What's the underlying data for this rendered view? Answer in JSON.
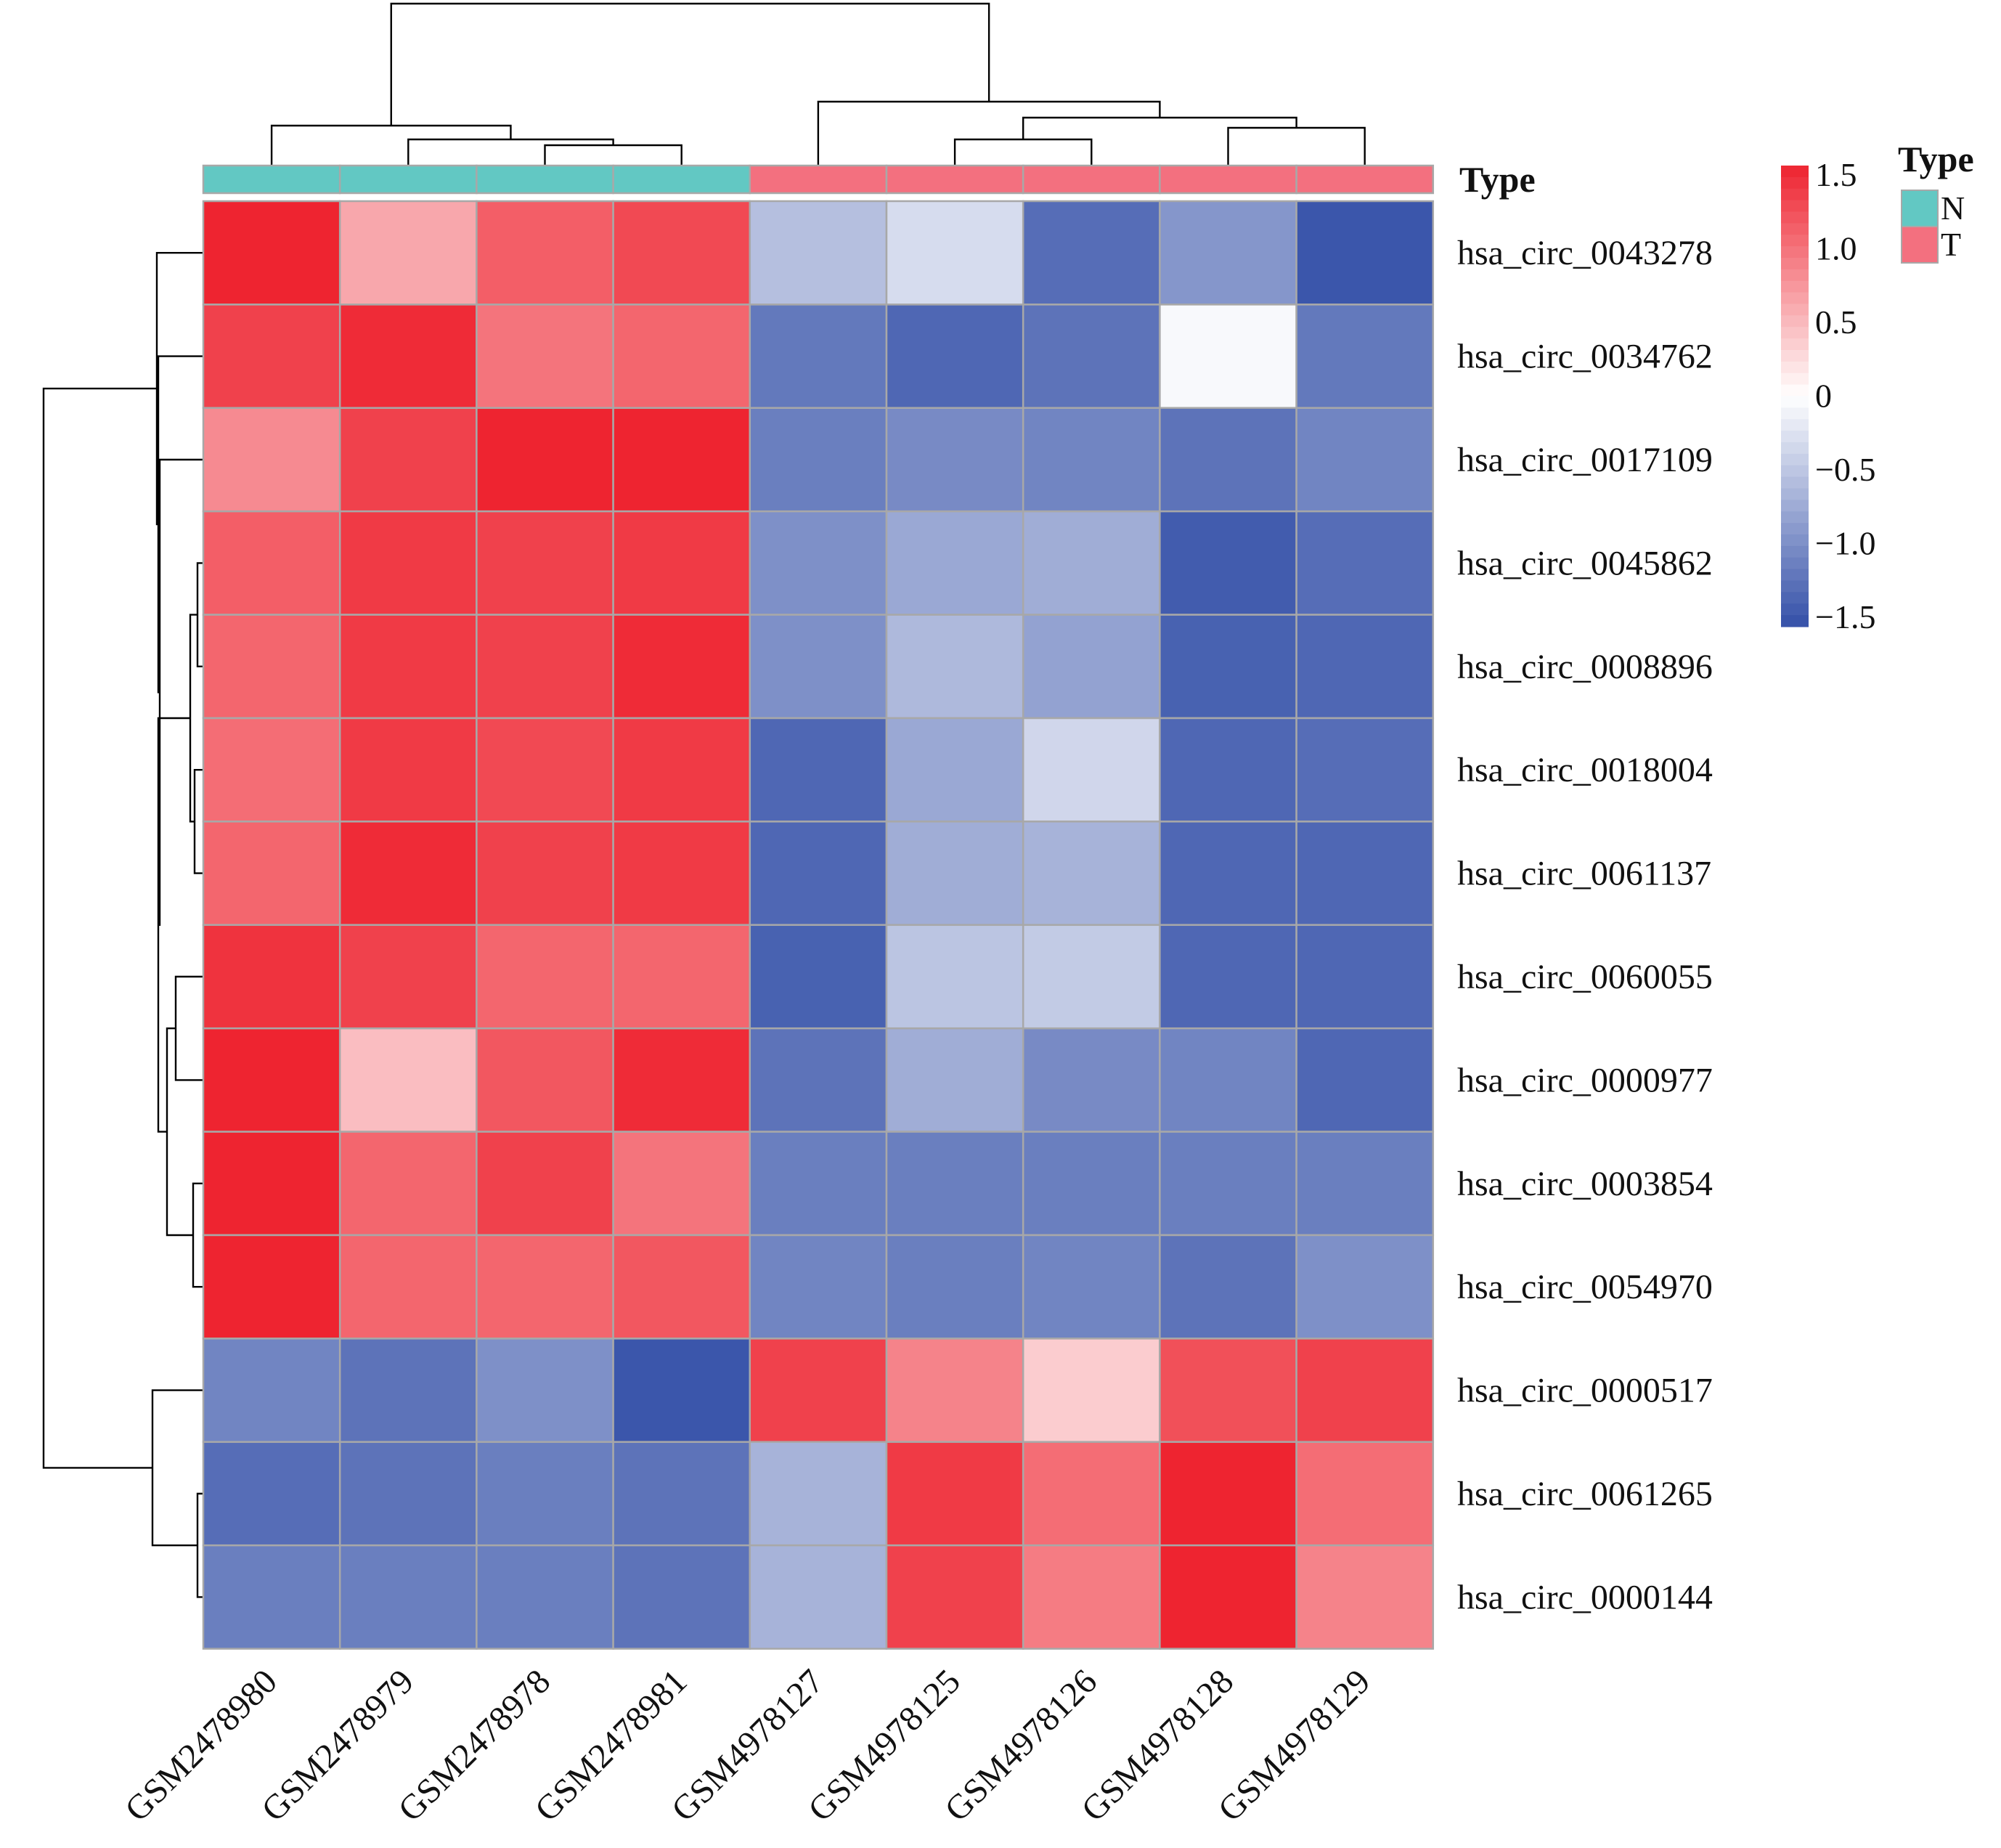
{
  "chart_data": {
    "type": "heatmap",
    "title": "",
    "xlabel": "",
    "ylabel": "",
    "columns": [
      "GSM2478980",
      "GSM2478979",
      "GSM2478978",
      "GSM2478981",
      "GSM4978127",
      "GSM4978125",
      "GSM4978126",
      "GSM4978128",
      "GSM4978129"
    ],
    "column_types": [
      "N",
      "N",
      "N",
      "N",
      "T",
      "T",
      "T",
      "T",
      "T"
    ],
    "rows": [
      "hsa_circ_0043278",
      "hsa_circ_0034762",
      "hsa_circ_0017109",
      "hsa_circ_0045862",
      "hsa_circ_0008896",
      "hsa_circ_0018004",
      "hsa_circ_0061137",
      "hsa_circ_0060055",
      "hsa_circ_0000977",
      "hsa_circ_0003854",
      "hsa_circ_0054970",
      "hsa_circ_0000517",
      "hsa_circ_0061265",
      "hsa_circ_0000144"
    ],
    "values": [
      [
        1.5,
        0.6,
        1.1,
        1.25,
        -0.55,
        -0.3,
        -1.25,
        -0.9,
        -1.45
      ],
      [
        1.3,
        1.45,
        0.95,
        1.05,
        -1.15,
        -1.3,
        -1.2,
        -0.05,
        -1.15
      ],
      [
        0.8,
        1.3,
        1.5,
        1.5,
        -1.1,
        -1.0,
        -1.05,
        -1.2,
        -1.05
      ],
      [
        1.1,
        1.35,
        1.3,
        1.35,
        -0.95,
        -0.75,
        -0.7,
        -1.4,
        -1.25
      ],
      [
        1.05,
        1.35,
        1.3,
        1.45,
        -0.95,
        -0.6,
        -0.8,
        -1.35,
        -1.3
      ],
      [
        1.0,
        1.35,
        1.25,
        1.35,
        -1.3,
        -0.75,
        -0.35,
        -1.3,
        -1.25
      ],
      [
        1.05,
        1.45,
        1.3,
        1.35,
        -1.3,
        -0.7,
        -0.65,
        -1.3,
        -1.3
      ],
      [
        1.4,
        1.3,
        1.05,
        1.05,
        -1.35,
        -0.5,
        -0.45,
        -1.3,
        -1.3
      ],
      [
        1.5,
        0.45,
        1.15,
        1.45,
        -1.2,
        -0.7,
        -1.0,
        -1.05,
        -1.3
      ],
      [
        1.5,
        1.05,
        1.3,
        0.95,
        -1.1,
        -1.1,
        -1.1,
        -1.1,
        -1.1
      ],
      [
        1.5,
        1.05,
        1.05,
        1.15,
        -1.05,
        -1.1,
        -1.05,
        -1.2,
        -0.95
      ],
      [
        -1.05,
        -1.2,
        -0.95,
        -1.45,
        1.3,
        0.85,
        0.35,
        1.2,
        1.3
      ],
      [
        -1.25,
        -1.2,
        -1.1,
        -1.2,
        -0.65,
        1.35,
        1.0,
        1.5,
        1.0
      ],
      [
        -1.1,
        -1.1,
        -1.1,
        -1.2,
        -0.65,
        1.3,
        0.9,
        1.5,
        0.85
      ]
    ],
    "annotation": {
      "label": "Type",
      "legend_title": "Type",
      "categories": [
        "N",
        "T"
      ],
      "colors": [
        "#62C8C3",
        "#F3707F"
      ]
    },
    "colorbar": {
      "range": [
        -1.5,
        1.5
      ],
      "ticks": [
        "1.5",
        "1.0",
        "0.5",
        "0",
        "−0.5",
        "−1.0",
        "−1.5"
      ],
      "low_color": "#3450A8",
      "mid_color": "#FFFFFF",
      "high_color": "#EE2430"
    },
    "dendrograms": {
      "rows": true,
      "columns": true
    },
    "grid": true,
    "legend_position": "top-right"
  }
}
